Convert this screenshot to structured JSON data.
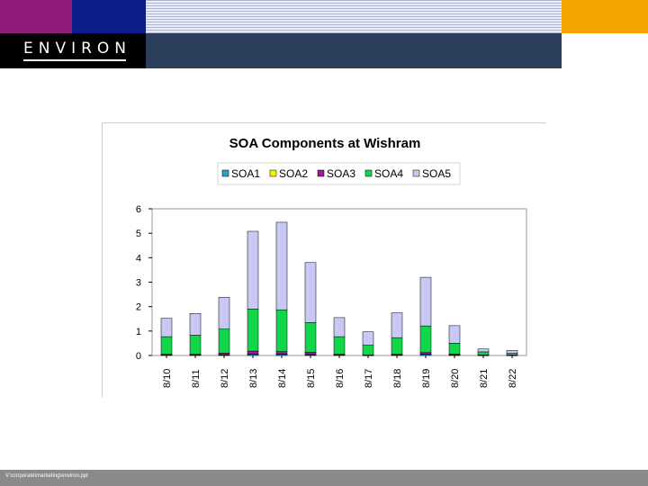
{
  "brand": {
    "logo_text": "ENVIRON"
  },
  "footer": {
    "path": "V:\\corporate\\marketing\\environ.ppt"
  },
  "colors": {
    "purple": "#8e1c78",
    "navy": "#0f1d8c",
    "orange": "#f5a300",
    "slate": "#2b3f5c"
  },
  "chart_data": {
    "type": "bar",
    "stacked": true,
    "title": "SOA Components at Wishram",
    "ylabel": "",
    "ylim": [
      0,
      6
    ],
    "yticks": [
      0,
      1,
      2,
      3,
      4,
      5,
      6
    ],
    "grid": false,
    "legend_position": "top",
    "categories": [
      "8/10",
      "8/11",
      "8/12",
      "8/13",
      "8/14",
      "8/15",
      "8/16",
      "8/17",
      "8/18",
      "8/19",
      "8/20",
      "8/21",
      "8/22"
    ],
    "series": [
      {
        "name": "SOA1",
        "color": "#1fa7c9",
        "values": [
          0.02,
          0.02,
          0.02,
          0.05,
          0.05,
          0.03,
          0.02,
          0.01,
          0.02,
          0.05,
          0.02,
          0.01,
          0.01
        ]
      },
      {
        "name": "SOA2",
        "color": "#f2f200",
        "values": [
          0.01,
          0.01,
          0.01,
          0.01,
          0.01,
          0.01,
          0.01,
          0.0,
          0.01,
          0.01,
          0.01,
          0.0,
          0.0
        ]
      },
      {
        "name": "SOA3",
        "color": "#a0199c",
        "values": [
          0.02,
          0.02,
          0.07,
          0.12,
          0.1,
          0.09,
          0.02,
          0.01,
          0.02,
          0.06,
          0.03,
          0.01,
          0.01
        ]
      },
      {
        "name": "SOA4",
        "color": "#11d64a",
        "values": [
          0.72,
          0.78,
          0.98,
          1.72,
          1.71,
          1.22,
          0.72,
          0.4,
          0.68,
          1.09,
          0.44,
          0.13,
          0.07
        ]
      },
      {
        "name": "SOA5",
        "color": "#c8c8f4",
        "values": [
          0.75,
          0.89,
          1.3,
          3.18,
          3.58,
          2.45,
          0.78,
          0.55,
          1.02,
          1.99,
          0.72,
          0.12,
          0.12
        ]
      }
    ]
  }
}
